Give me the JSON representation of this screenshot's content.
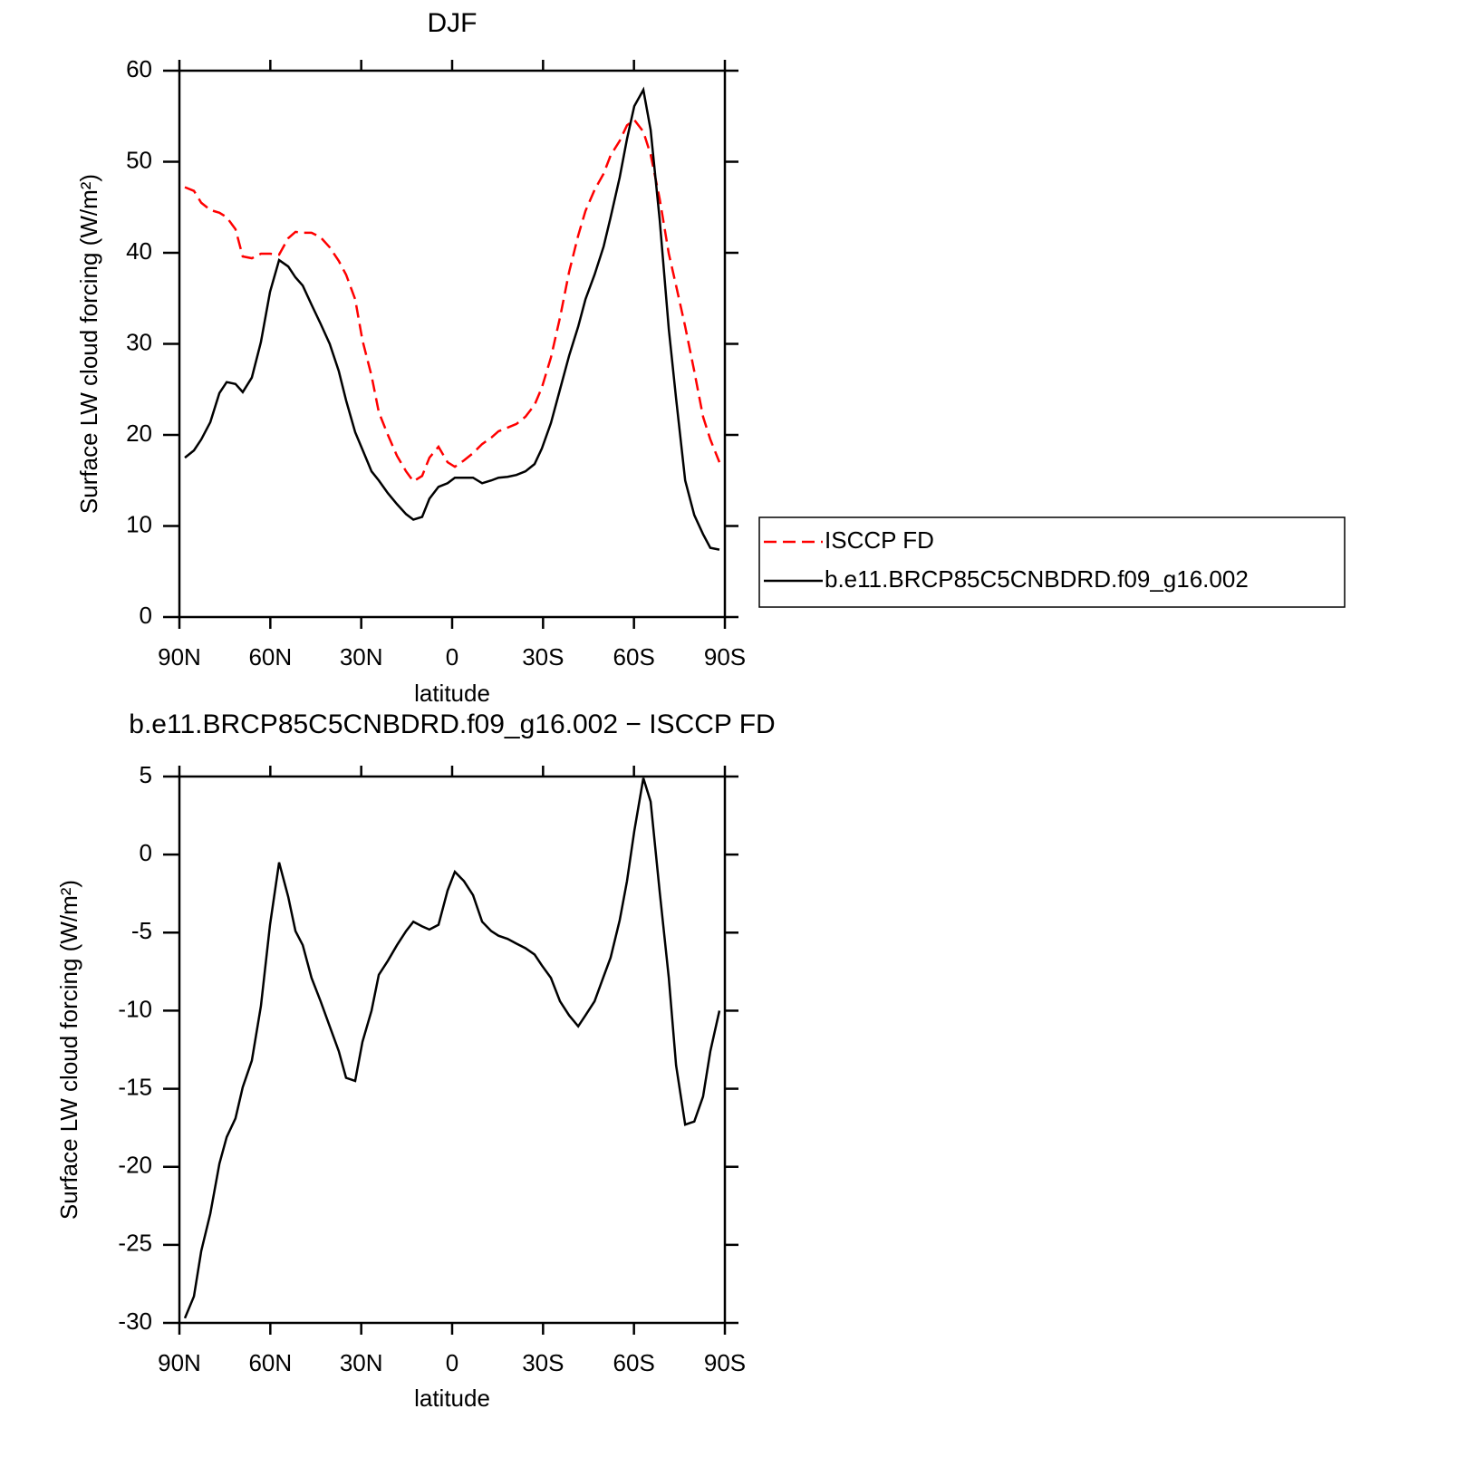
{
  "chart_data": [
    {
      "type": "line",
      "title": "DJF",
      "xlabel": "latitude",
      "ylabel": "Surface LW cloud forcing (W/m²)",
      "x": [
        88.2,
        85.2,
        82.8,
        79.8,
        76.8,
        74.4,
        71.5,
        69.1,
        66.1,
        63.1,
        60.1,
        57.1,
        54.1,
        51.7,
        49.3,
        46.4,
        43.4,
        40.4,
        37.4,
        35.0,
        32.0,
        29.6,
        26.6,
        24.2,
        21.2,
        18.2,
        15.2,
        12.8,
        9.9,
        7.5,
        4.5,
        1.5,
        -0.9,
        -3.9,
        -6.9,
        -9.9,
        -12.9,
        -15.3,
        -18.3,
        -21.2,
        -24.2,
        -27.2,
        -29.6,
        -32.6,
        -35.6,
        -38.6,
        -41.6,
        -44.0,
        -47.0,
        -50.0,
        -52.3,
        -55.3,
        -57.7,
        -60.1,
        -63.1,
        -65.5,
        -68.5,
        -71.5,
        -73.9,
        -76.9,
        -79.9,
        -82.8,
        -85.2,
        -88.2
      ],
      "series": [
        {
          "name": "ISCCP FD",
          "color": "#ff0000",
          "dash": true,
          "values": [
            47.2,
            46.8,
            45.5,
            44.7,
            44.4,
            43.9,
            42.6,
            39.6,
            39.4,
            39.9,
            39.9,
            39.8,
            41.6,
            42.3,
            42.2,
            42.2,
            41.7,
            40.6,
            39.1,
            37.6,
            34.9,
            30.4,
            26.5,
            22.5,
            20.0,
            17.7,
            16.0,
            14.9,
            15.5,
            17.5,
            18.7,
            17.0,
            16.5,
            17.2,
            18.0,
            19.0,
            19.7,
            20.4,
            20.8,
            21.2,
            22.0,
            23.3,
            25.2,
            28.5,
            32.9,
            37.9,
            41.9,
            44.6,
            46.9,
            48.7,
            50.7,
            52.3,
            54.0,
            54.6,
            53.3,
            50.8,
            45.9,
            39.9,
            36.4,
            31.9,
            27.0,
            22.0,
            19.5,
            17.0
          ]
        },
        {
          "name": "b.e11.BRCP85C5CNBDRD.f09_g16.002",
          "color": "#000000",
          "dash": false,
          "values": [
            17.5,
            18.3,
            19.5,
            21.4,
            24.6,
            25.8,
            25.6,
            24.7,
            26.3,
            30.2,
            35.7,
            39.2,
            38.5,
            37.3,
            36.4,
            34.3,
            32.2,
            30.0,
            27.0,
            23.8,
            20.3,
            18.4,
            16.0,
            15.0,
            13.6,
            12.4,
            11.3,
            10.7,
            11.0,
            13.0,
            14.3,
            14.7,
            15.3,
            15.3,
            15.3,
            14.7,
            15.0,
            15.3,
            15.4,
            15.6,
            16.0,
            16.8,
            18.5,
            21.3,
            25.0,
            28.7,
            31.9,
            34.9,
            37.6,
            40.7,
            43.9,
            48.3,
            52.5,
            56.1,
            57.9,
            53.5,
            43.6,
            31.6,
            24.0,
            15.0,
            11.2,
            9.1,
            7.6,
            7.4
          ]
        }
      ],
      "xlim": [
        90,
        -90
      ],
      "xticks": [
        {
          "value": 90,
          "label": "90N"
        },
        {
          "value": 60,
          "label": "60N"
        },
        {
          "value": 30,
          "label": "30N"
        },
        0,
        {
          "value": -30,
          "label": "30S"
        },
        {
          "value": -60,
          "label": "60S"
        },
        {
          "value": -90,
          "label": "90S"
        }
      ],
      "ylim": [
        0,
        60
      ],
      "yticks": [
        0,
        10,
        20,
        30,
        40,
        50,
        60
      ],
      "legend": "right"
    },
    {
      "type": "line",
      "title": "b.e11.BRCP85C5CNBDRD.f09_g16.002 − ISCCP FD",
      "xlabel": "latitude",
      "ylabel": "Surface LW cloud forcing (W/m²)",
      "x": [
        88.2,
        85.2,
        82.8,
        79.8,
        76.8,
        74.4,
        71.5,
        69.1,
        66.1,
        63.1,
        60.1,
        57.1,
        54.1,
        51.7,
        49.3,
        46.4,
        43.4,
        40.4,
        37.4,
        35.0,
        32.0,
        29.6,
        26.6,
        24.2,
        21.2,
        18.2,
        15.2,
        12.8,
        9.9,
        7.5,
        4.5,
        1.5,
        -0.9,
        -3.9,
        -6.9,
        -9.9,
        -12.9,
        -15.3,
        -18.3,
        -21.2,
        -24.2,
        -27.2,
        -29.6,
        -32.6,
        -35.6,
        -38.6,
        -41.6,
        -44.0,
        -47.0,
        -50.0,
        -52.3,
        -55.3,
        -57.7,
        -60.1,
        -63.1,
        -65.5,
        -68.5,
        -71.5,
        -73.9,
        -76.9,
        -79.9,
        -82.8,
        -85.2,
        -88.2
      ],
      "values": [
        -29.7,
        -28.3,
        -25.4,
        -23.0,
        -19.8,
        -18.1,
        -16.9,
        -14.9,
        -13.2,
        -9.7,
        -4.5,
        -0.5,
        -2.7,
        -4.9,
        -5.8,
        -7.9,
        -9.4,
        -11.0,
        -12.6,
        -14.3,
        -14.5,
        -12.0,
        -10.0,
        -7.7,
        -6.8,
        -5.8,
        -4.9,
        -4.3,
        -4.6,
        -4.8,
        -4.5,
        -2.3,
        -1.1,
        -1.7,
        -2.6,
        -4.3,
        -4.9,
        -5.2,
        -5.4,
        -5.7,
        -6.0,
        -6.4,
        -7.1,
        -7.9,
        -9.4,
        -10.3,
        -11.0,
        -10.3,
        -9.4,
        -7.8,
        -6.6,
        -4.2,
        -1.7,
        1.5,
        4.9,
        3.4,
        -2.4,
        -7.9,
        -13.5,
        -17.3,
        -17.1,
        -15.5,
        -12.6,
        -10.0
      ],
      "color": "#000000",
      "xlim": [
        90,
        -90
      ],
      "xticks": [
        {
          "value": 90,
          "label": "90N"
        },
        {
          "value": 60,
          "label": "60N"
        },
        {
          "value": 30,
          "label": "30N"
        },
        0,
        {
          "value": -30,
          "label": "30S"
        },
        {
          "value": -60,
          "label": "60S"
        },
        {
          "value": -90,
          "label": "90S"
        }
      ],
      "ylim": [
        -30,
        5
      ],
      "yticks": [
        -30,
        -25,
        -20,
        -15,
        -10,
        -5,
        0,
        5
      ]
    }
  ]
}
